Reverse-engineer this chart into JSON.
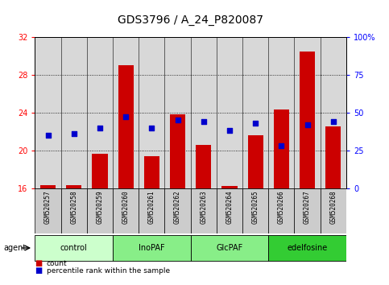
{
  "title": "GDS3796 / A_24_P820087",
  "samples": [
    "GSM520257",
    "GSM520258",
    "GSM520259",
    "GSM520260",
    "GSM520261",
    "GSM520262",
    "GSM520263",
    "GSM520264",
    "GSM520265",
    "GSM520266",
    "GSM520267",
    "GSM520268"
  ],
  "bar_values": [
    16.3,
    16.3,
    19.6,
    29.0,
    19.4,
    23.8,
    20.6,
    16.2,
    21.6,
    24.3,
    30.5,
    22.5
  ],
  "bar_baseline": 16,
  "percentile_values": [
    35,
    36,
    40,
    47,
    40,
    45,
    44,
    38,
    43,
    28,
    42,
    44
  ],
  "ylim_left": [
    16,
    32
  ],
  "ylim_right": [
    0,
    100
  ],
  "yticks_left": [
    16,
    20,
    24,
    28,
    32
  ],
  "yticks_right": [
    0,
    25,
    50,
    75,
    100
  ],
  "ytick_labels_right": [
    "0",
    "25",
    "50",
    "75",
    "100%"
  ],
  "bar_color": "#cc0000",
  "dot_color": "#0000cc",
  "agent_groups": [
    {
      "label": "control",
      "start": 0,
      "end": 3,
      "color": "#ccffcc"
    },
    {
      "label": "InoPAF",
      "start": 3,
      "end": 6,
      "color": "#88ee88"
    },
    {
      "label": "GlcPAF",
      "start": 6,
      "end": 9,
      "color": "#88ee88"
    },
    {
      "label": "edelfosine",
      "start": 9,
      "end": 12,
      "color": "#33cc33"
    }
  ],
  "plot_bg": "#d8d8d8",
  "title_fontsize": 10,
  "tick_fontsize": 7,
  "legend_count_label": "count",
  "legend_pct_label": "percentile rank within the sample"
}
